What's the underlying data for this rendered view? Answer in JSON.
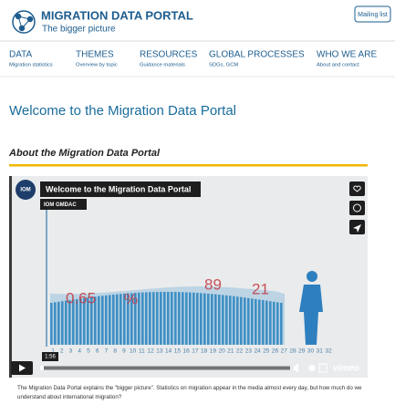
{
  "header": {
    "title": "MIGRATION DATA PORTAL",
    "subtitle": "The bigger picture",
    "button": "Mailing list"
  },
  "nav": [
    {
      "label": "DATA",
      "sub": "Migration statistics"
    },
    {
      "label": "THEMES",
      "sub": "Overview by topic"
    },
    {
      "label": "RESOURCES",
      "sub": "Guidance materials"
    },
    {
      "label": "GLOBAL PROCESSES",
      "sub": "SDGs, GCM"
    },
    {
      "label": "WHO WE ARE",
      "sub": "About and contact"
    }
  ],
  "page": {
    "heading": "Welcome to the Migration Data Portal",
    "section": "About the Migration Data Portal",
    "video": {
      "title": "Welcome to the Migration Data Portal",
      "channel": "IOM GMDAC",
      "logo": "IOM",
      "overlay": [
        "0.65",
        "%",
        "89",
        "21"
      ],
      "axis": [
        "1",
        "2",
        "3",
        "4",
        "5",
        "6",
        "7",
        "8",
        "9",
        "10",
        "11",
        "12",
        "13",
        "14",
        "15",
        "16",
        "17",
        "18",
        "19",
        "20",
        "21",
        "22",
        "23",
        "24",
        "25",
        "26",
        "27",
        "28",
        "29",
        "30",
        "31",
        "32"
      ],
      "time": "1:56",
      "brand": "vimeo"
    },
    "caption": "The Migration Data Portal explains the \"bigger picture\". Statistics on migration appear in the media almost every day, but how much do we understand about international migration?"
  }
}
